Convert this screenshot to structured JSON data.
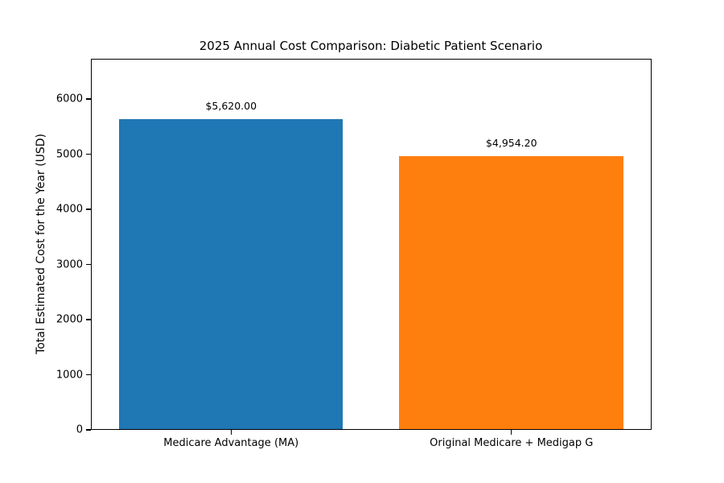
{
  "chart_data": {
    "type": "bar",
    "title": "2025 Annual Cost Comparison: Diabetic Patient Scenario",
    "xlabel": "",
    "ylabel": "Total Estimated Cost for the Year (USD)",
    "categories": [
      "Medicare Advantage (MA)",
      "Original Medicare + Medigap G"
    ],
    "values": [
      5620.0,
      4954.2
    ],
    "value_labels": [
      "$5,620.00",
      "$4,954.20"
    ],
    "bar_colors": [
      "#1f77b4",
      "#ff7f0e"
    ],
    "ylim": [
      0,
      6730
    ],
    "yticks": [
      0,
      1000,
      2000,
      3000,
      4000,
      5000,
      6000
    ],
    "bar_width_fraction": 0.8,
    "grid": false,
    "legend": null,
    "background_color": "#ffffff",
    "text_color": "#000000",
    "spine_color": "#000000"
  }
}
